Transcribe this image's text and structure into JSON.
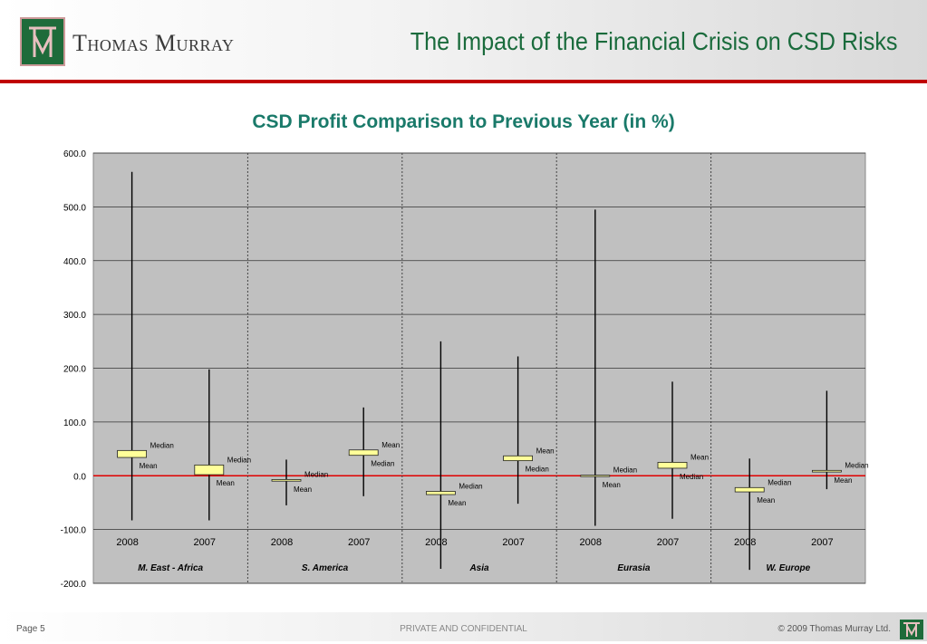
{
  "header": {
    "company": "Thomas Murray",
    "title": "The Impact of the Financial Crisis on CSD Risks"
  },
  "footer": {
    "page": "Page 5",
    "confidential": "PRIVATE AND CONFIDENTIAL",
    "copyright": "© 2009 Thomas Murray Ltd."
  },
  "colors": {
    "brand_green": "#1e6b3a",
    "title_teal": "#1a7a6a",
    "plot_bg": "#c0c0c0",
    "box_fill": "#ffff99",
    "zero_line": "#e00000"
  },
  "chart_data": {
    "type": "box",
    "title": "CSD Profit Comparison to Previous Year (in %)",
    "ylim": [
      -200,
      600
    ],
    "yticks": [
      "600.0",
      "500.0",
      "400.0",
      "300.0",
      "200.0",
      "100.0",
      "0.0",
      "-100.0",
      "-200.0"
    ],
    "grid": true,
    "groups": [
      {
        "region": "M. East - Africa",
        "items": [
          {
            "year": "2008",
            "max": 565,
            "min": -83,
            "box_top": 47,
            "box_bottom": 34,
            "upper_label": "Median",
            "lower_label": "Mean"
          },
          {
            "year": "2007",
            "max": 198,
            "min": -83,
            "box_top": 20,
            "box_bottom": 2,
            "upper_label": "Median",
            "lower_label": "Mean"
          }
        ]
      },
      {
        "region": "S. America",
        "items": [
          {
            "year": "2008",
            "max": 30,
            "min": -55,
            "box_top": -7,
            "box_bottom": -10,
            "upper_label": "Median",
            "lower_label": "Mean"
          },
          {
            "year": "2007",
            "max": 127,
            "min": -38,
            "box_top": 48,
            "box_bottom": 38,
            "upper_label": "Mean",
            "lower_label": "Median"
          }
        ]
      },
      {
        "region": "Asia",
        "items": [
          {
            "year": "2008",
            "max": 250,
            "min": -173,
            "box_top": -29,
            "box_bottom": -35,
            "upper_label": "Median",
            "lower_label": "Mean"
          },
          {
            "year": "2007",
            "max": 222,
            "min": -52,
            "box_top": 37,
            "box_bottom": 28,
            "upper_label": "Mean",
            "lower_label": "Median"
          }
        ]
      },
      {
        "region": "Eurasia",
        "items": [
          {
            "year": "2008",
            "max": 495,
            "min": -93,
            "box_top": 1,
            "box_bottom": -1,
            "upper_label": "Median",
            "lower_label": "Mean"
          },
          {
            "year": "2007",
            "max": 175,
            "min": -80,
            "box_top": 25,
            "box_bottom": 14,
            "upper_label": "Mean",
            "lower_label": "Median"
          }
        ]
      },
      {
        "region": "W. Europe",
        "items": [
          {
            "year": "2008",
            "max": 32,
            "min": -175,
            "box_top": -22,
            "box_bottom": -30,
            "upper_label": "Median",
            "lower_label": "Mean"
          },
          {
            "year": "2007",
            "max": 158,
            "min": -25,
            "box_top": 10,
            "box_bottom": 7,
            "upper_label": "Median",
            "lower_label": "Mean"
          }
        ]
      }
    ]
  }
}
